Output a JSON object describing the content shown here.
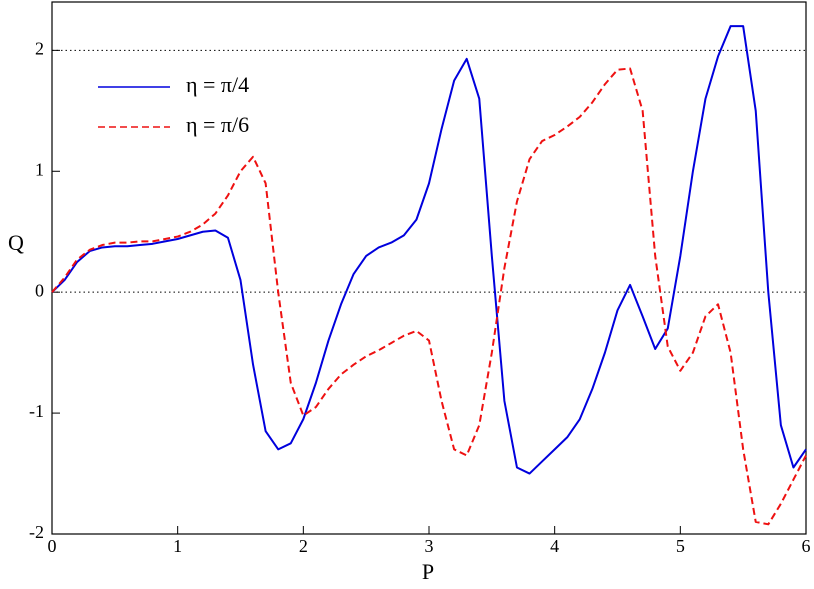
{
  "chart_data": {
    "type": "line",
    "x_label": "P",
    "y_label": "Q",
    "x": [
      0,
      0.1,
      0.2,
      0.3,
      0.4,
      0.5,
      0.6,
      0.7,
      0.8,
      0.9,
      1,
      1.1,
      1.2,
      1.3,
      1.4,
      1.5,
      1.6,
      1.7,
      1.8,
      1.9,
      2,
      2.1,
      2.2,
      2.3,
      2.4,
      2.5,
      2.6,
      2.7,
      2.8,
      2.9,
      3,
      3.1,
      3.2,
      3.3,
      3.4,
      3.5,
      3.6,
      3.7,
      3.8,
      3.9,
      4,
      4.1,
      4.2,
      4.3,
      4.4,
      4.5,
      4.6,
      4.7,
      4.8,
      4.9,
      5,
      5.1,
      5.2,
      5.3,
      5.4,
      5.5,
      5.6,
      5.7,
      5.8,
      5.9,
      6
    ],
    "series": [
      {
        "name": "η  = π/4",
        "color": "#0000dd",
        "dash": false,
        "values": [
          0,
          0.1,
          0.25,
          0.34,
          0.37,
          0.38,
          0.38,
          0.39,
          0.4,
          0.42,
          0.44,
          0.47,
          0.5,
          0.51,
          0.45,
          0.1,
          -0.6,
          -1.15,
          -1.3,
          -1.25,
          -1.05,
          -0.75,
          -0.4,
          -0.1,
          0.15,
          0.3,
          0.37,
          0.41,
          0.47,
          0.6,
          0.9,
          1.35,
          1.75,
          1.93,
          1.6,
          0.3,
          -0.9,
          -1.45,
          -1.5,
          -1.4,
          -1.3,
          -1.2,
          -1.05,
          -0.8,
          -0.5,
          -0.15,
          0.06,
          -0.2,
          -0.47,
          -0.3,
          0.3,
          1.0,
          1.6,
          1.95,
          2.2,
          2.2,
          1.5,
          0.0,
          -1.1,
          -1.45,
          -1.3
        ]
      },
      {
        "name": "η  = π/6",
        "color": "#ee1111",
        "dash": true,
        "values": [
          0,
          0.12,
          0.27,
          0.35,
          0.39,
          0.41,
          0.41,
          0.42,
          0.42,
          0.44,
          0.46,
          0.5,
          0.56,
          0.65,
          0.8,
          1.0,
          1.12,
          0.9,
          0.0,
          -0.75,
          -1.02,
          -0.95,
          -0.8,
          -0.68,
          -0.6,
          -0.53,
          -0.48,
          -0.42,
          -0.36,
          -0.32,
          -0.4,
          -0.9,
          -1.3,
          -1.35,
          -1.1,
          -0.5,
          0.2,
          0.75,
          1.1,
          1.25,
          1.3,
          1.37,
          1.45,
          1.57,
          1.72,
          1.84,
          1.85,
          1.5,
          0.3,
          -0.45,
          -0.65,
          -0.5,
          -0.2,
          -0.1,
          -0.5,
          -1.3,
          -1.9,
          -1.92,
          -1.75,
          -1.55,
          -1.35
        ]
      }
    ],
    "xlim": [
      0,
      6
    ],
    "ylim": [
      -2,
      2.4
    ],
    "xticks": [
      0,
      1,
      2,
      3,
      4,
      5,
      6
    ],
    "yticks": [
      -2,
      -1,
      0,
      1,
      2
    ],
    "reference_lines": [
      0,
      2
    ]
  }
}
